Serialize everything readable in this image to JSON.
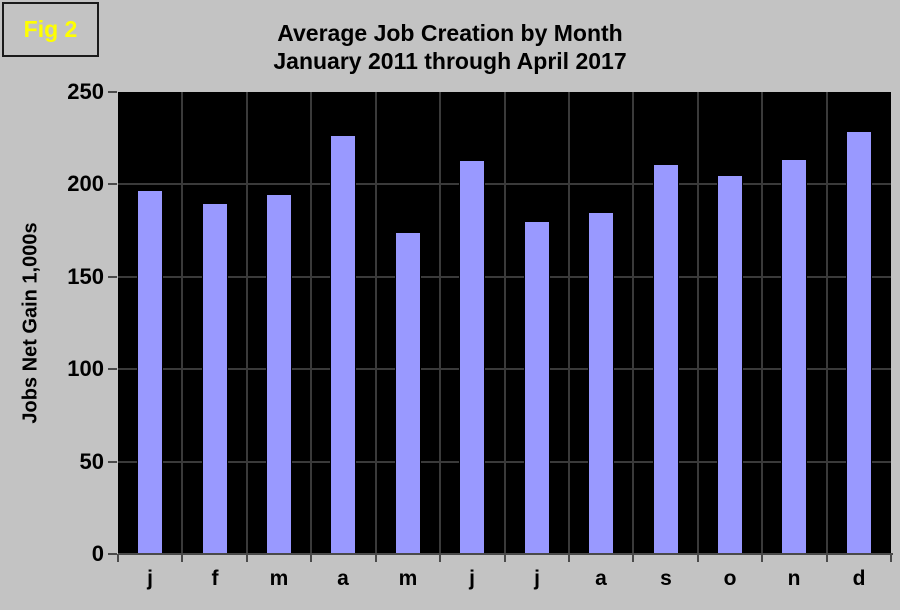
{
  "figure_label": "Fig 2",
  "title": {
    "line1": "Average Job Creation by Month",
    "line2": "January 2011 through April 2017"
  },
  "colors": {
    "background": "#c3c3c3",
    "plot_background": "#000000",
    "bar_fill": "#9999ff",
    "bar_border": "#000000",
    "gridline": "#3a3a3a",
    "axis": "#4a4a4a",
    "figure_label_color": "#ffff00",
    "text": "#000000"
  },
  "chart_data": {
    "type": "bar",
    "title": "Average Job Creation by Month",
    "subtitle": "January 2011 through April 2017",
    "categories": [
      "j",
      "f",
      "m",
      "a",
      "m",
      "j",
      "j",
      "a",
      "s",
      "o",
      "n",
      "d"
    ],
    "values": [
      197,
      190,
      195,
      227,
      174,
      213,
      180,
      185,
      211,
      205,
      214,
      229
    ],
    "xlabel": "",
    "ylabel": "Jobs Net Gain 1,000s",
    "ylim": [
      0,
      250
    ],
    "yticks": [
      0,
      50,
      100,
      150,
      200,
      250
    ],
    "grid": true,
    "legend": false
  }
}
